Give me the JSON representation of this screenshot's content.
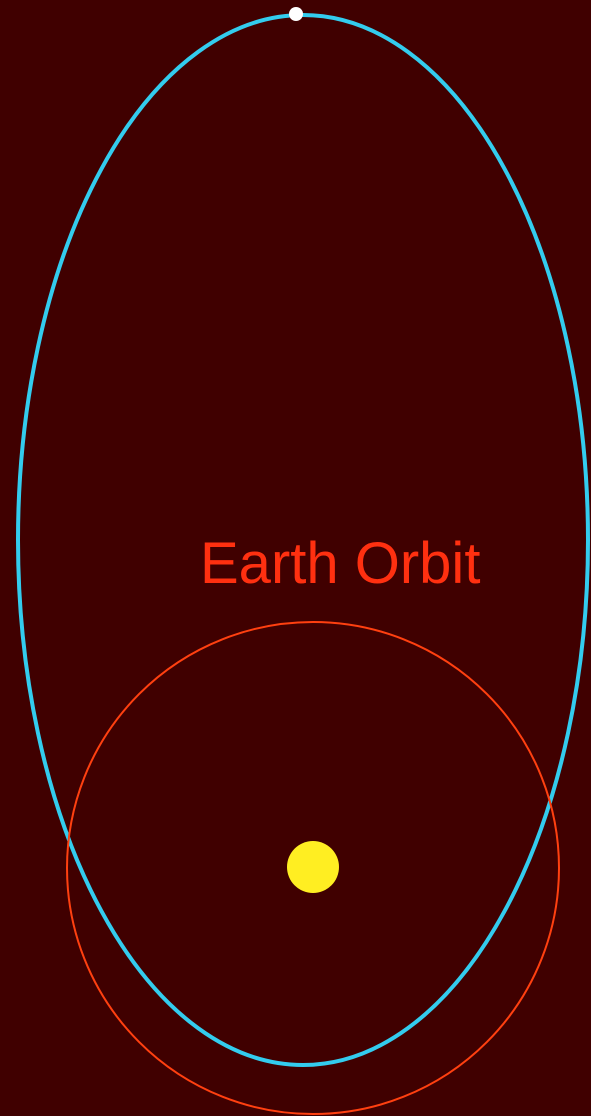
{
  "orbit_label": "Earth Orbit"
}
